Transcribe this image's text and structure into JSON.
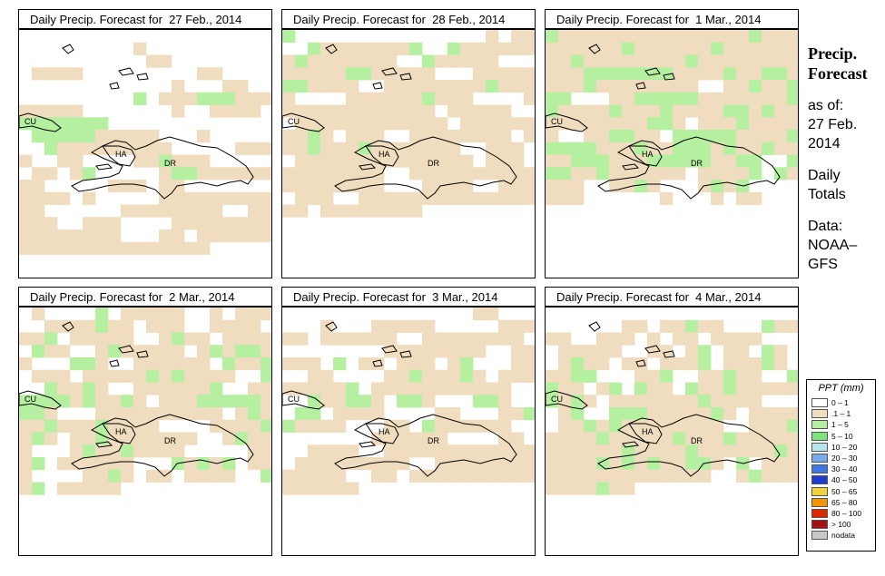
{
  "panels": [
    {
      "title": "Daily Precip. Forecast for  27 Feb., 2014",
      "labels": {
        "cu": "CU",
        "ha": "HA",
        "dr": "DR"
      }
    },
    {
      "title": "Daily Precip. Forecast for  28 Feb., 2014",
      "labels": {
        "cu": "CU",
        "ha": "HA",
        "dr": "DR"
      }
    },
    {
      "title": "Daily Precip. Forecast for  1 Mar., 2014",
      "labels": {
        "cu": "CU",
        "ha": "HA",
        "dr": "DR"
      }
    },
    {
      "title": "Daily Precip. Forecast for  2 Mar., 2014",
      "labels": {
        "cu": "CU",
        "ha": "HA",
        "dr": "DR"
      }
    },
    {
      "title": "Daily Precip. Forecast for  3 Mar., 2014",
      "labels": {
        "cu": "CU",
        "ha": "HA",
        "dr": "DR"
      }
    },
    {
      "title": "Daily Precip. Forecast for  4 Mar., 2014",
      "labels": {
        "cu": "CU",
        "ha": "HA",
        "dr": "DR"
      }
    }
  ],
  "sidebar": {
    "title_line1": "Precip.",
    "title_line2": "Forecast",
    "asof": "as of:",
    "date_line1": "27 Feb.",
    "date_line2": "2014",
    "totals_line1": "Daily",
    "totals_line2": "Totals",
    "data_line1": "Data:",
    "data_line2": "NOAA–",
    "data_line3": "GFS"
  },
  "legend": {
    "title": "PPT (mm)",
    "items": [
      {
        "label": "0 – 1",
        "color": "#ffffff"
      },
      {
        "label": ".1 – 1",
        "color": "#f0dcbe"
      },
      {
        "label": "1 – 5",
        "color": "#b4f0a0"
      },
      {
        "label": "5 – 10",
        "color": "#78e678"
      },
      {
        "label": "10 – 20",
        "color": "#b4e6f0"
      },
      {
        "label": "20 – 30",
        "color": "#78aaf0"
      },
      {
        "label": "30 – 40",
        "color": "#3c78e6"
      },
      {
        "label": "40 – 50",
        "color": "#1e3cd2"
      },
      {
        "label": "50 – 65",
        "color": "#f0d23c"
      },
      {
        "label": "65 – 80",
        "color": "#f09600"
      },
      {
        "label": "80 – 100",
        "color": "#dc2800"
      },
      {
        "label": "> 100",
        "color": "#a01414"
      },
      {
        "label": "nodata",
        "color": "#c8c8c8"
      }
    ]
  },
  "grid_codes": [
    "............................./....................//.........////.........//................/...//...........*.///***////////......./..////.*******..............*****/////.../.......*/////////.....////..//....//*///......//./*...../**////////.....///.//.......////./.....///////////......////////../////..///....////////////////...//./////////////////////",
    "*..............././/..*///////*..*///////*///////..*/////.../////**/////.../////**////..////////*////....//////*///..../////////////./////...////////////.////////*/.///..////////.///*///*///////..///..//////////////.///.////////..//////////////////...////..///.///..////////////////.////////",
    "*///////////////*/////////*//////*////////*////////*///////////*******////*//**////*////////..//*//***...//*****///////**////*///*////**/*//////////**/.///*/////..//**//.*****////*****///*//***/*//*////***///*****//**..***//*//////.////*.*////..//*/.../*/*....///....../..././/..",
    "./....*./////.././//..////*//.///..////.//*./////../*//.////.*//../*/////./*/**//...**/..//////.*//*.///./////*/*////..*..*//*/..//////*..//****/*//*/.///*****/**/...//////////./*///*///*////....////*/*/.//*///////../*///.../*//*////.....///*.//////...*/*/*.///....//*/.//.////..*/*./////.",
    "...............//....../.../////...../////.//////..////////.........////////../////.*.//.///./*...//..//....//*///*/.////////*.///////////....*//**/.**/...**/...**.////....//...//**////...//.*//////.........//////....//...////..////////////./////////../////////////..//.////////////////",
    "..........................//.//*//...*////..///././/.////..../////..//./*.//.*/../*//.//.///*.///*/.//**...//*..//*//..**//./*.*//.*//*/////*/*/.///////*////..../*..***/////*/.////.//*/*////////..///*////*/////*///*///////////*////*//////*/////*/*/*//**/.*.////////////////../*///////*//"
  ]
}
